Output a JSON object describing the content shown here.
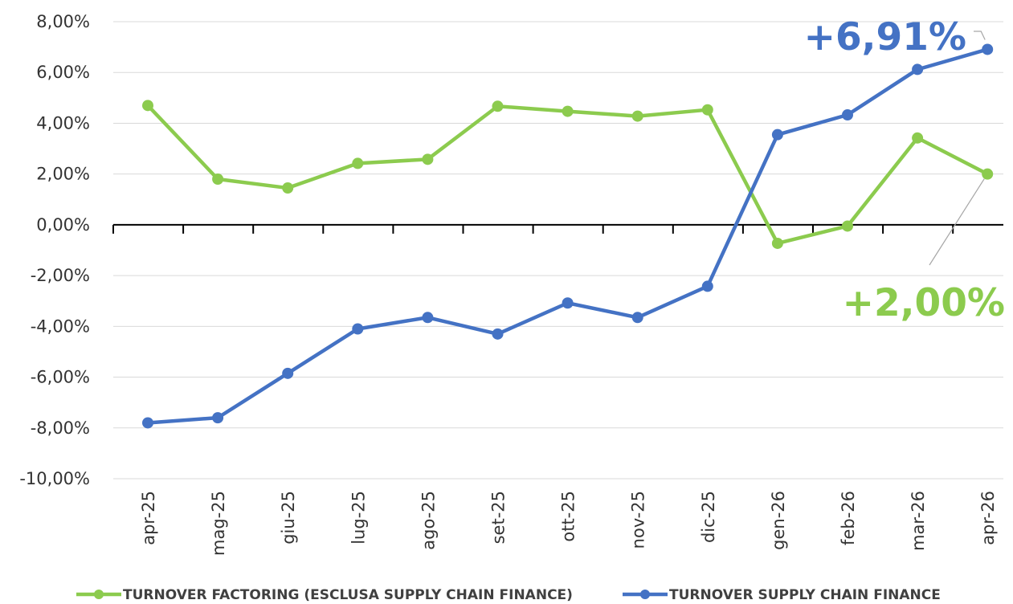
{
  "chart_data": {
    "type": "line",
    "title": "",
    "xlabel": "",
    "ylabel": "",
    "categories": [
      "apr-25",
      "mag-25",
      "giu-25",
      "lug-25",
      "ago-25",
      "set-25",
      "ott-25",
      "nov-25",
      "dic-25",
      "gen-26",
      "feb-26",
      "mar-26",
      "apr-26"
    ],
    "y_tick_values": [
      8,
      6,
      4,
      2,
      0,
      -2,
      -4,
      -6,
      -8,
      -10
    ],
    "y_tick_labels": [
      "8,00%",
      "6,00%",
      "4,00%",
      "2,00%",
      "0,00%",
      "-2,00%",
      "-4,00%",
      "-6,00%",
      "-8,00%",
      "-10,00%"
    ],
    "ylim": [
      -10,
      8
    ],
    "grid": true,
    "legend_position": "bottom",
    "series": [
      {
        "name": "TURNOVER FACTORING (ESCLUSA SUPPLY CHAIN FINANCE)",
        "color": "#8CCB4E",
        "values": [
          4.7,
          1.8,
          1.45,
          2.42,
          2.58,
          4.67,
          4.47,
          4.28,
          4.53,
          -0.73,
          -0.05,
          3.42,
          2.0
        ]
      },
      {
        "name": "TURNOVER SUPPLY CHAIN FINANCE",
        "color": "#4472C4",
        "values": [
          -7.8,
          -7.6,
          -5.85,
          -4.1,
          -3.65,
          -4.3,
          -3.08,
          -3.65,
          -2.42,
          3.55,
          4.33,
          6.12,
          6.91
        ]
      }
    ],
    "annotations": [
      {
        "series": 1,
        "index": 12,
        "text": "+6,91%",
        "color": "#4472C4"
      },
      {
        "series": 0,
        "index": 12,
        "text": "+2,00%",
        "color": "#8CCB4E"
      }
    ]
  }
}
